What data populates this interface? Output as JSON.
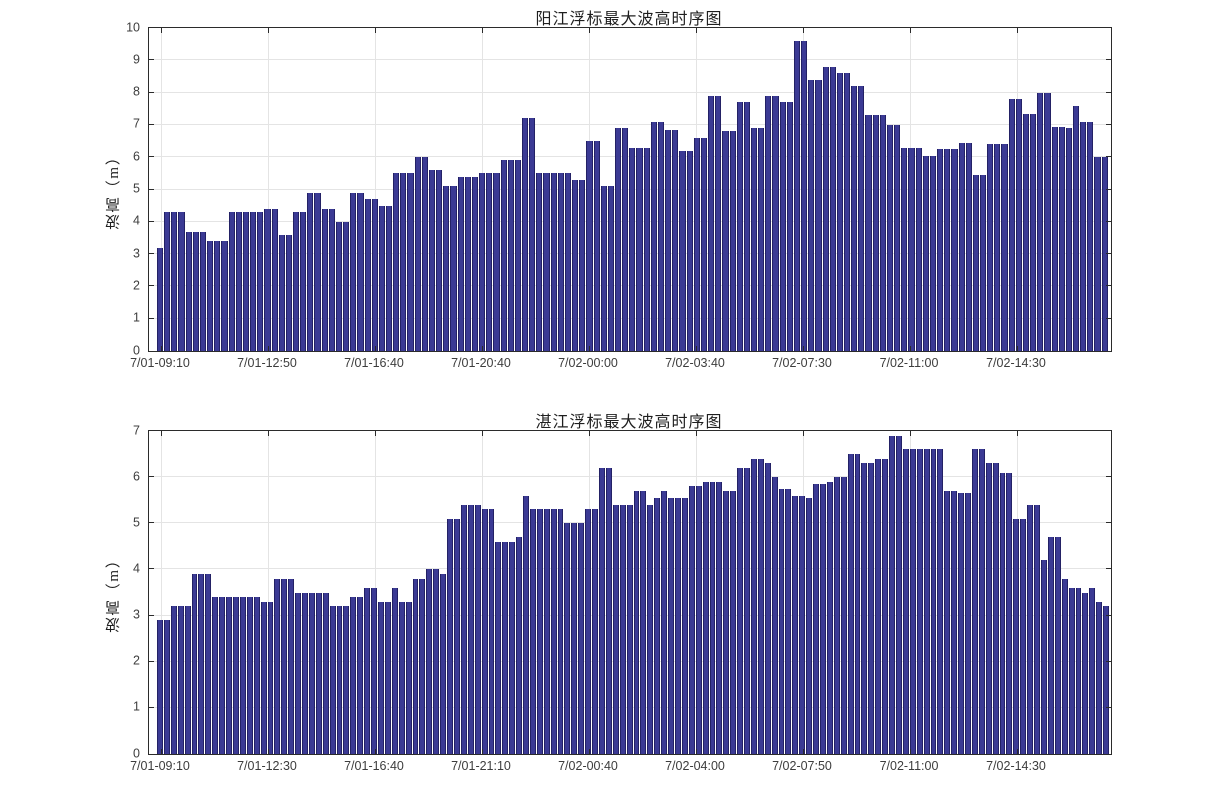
{
  "figure": {
    "background": "#ffffff",
    "grid_color": "#e4e4e4",
    "axis_color": "#2b2b2b",
    "text_color": "#3d3d3d",
    "bar_color": "#3b3a94",
    "bar_edge_color": "#232165"
  },
  "chart_data": [
    {
      "type": "bar",
      "title": "阳江浮标最大波高时序图",
      "xlabel": "",
      "ylabel": "波高（m）",
      "ylim": [
        0,
        10
      ],
      "ytick_step": 1,
      "grid": true,
      "legend": null,
      "xticklabels": [
        "7/01-09:10",
        "7/01-12:50",
        "7/01-16:40",
        "7/01-20:40",
        "7/02-00:00",
        "7/02-03:40",
        "7/02-07:30",
        "7/02-11:00",
        "7/02-14:30"
      ],
      "values": [
        3.2,
        4.3,
        4.3,
        4.3,
        3.7,
        3.7,
        3.7,
        3.4,
        3.4,
        3.4,
        4.3,
        4.3,
        4.3,
        4.3,
        4.3,
        4.4,
        4.4,
        3.6,
        3.6,
        4.3,
        4.3,
        4.9,
        4.9,
        4.4,
        4.4,
        4.0,
        4.0,
        4.9,
        4.9,
        4.7,
        4.7,
        4.5,
        4.5,
        5.5,
        5.5,
        5.5,
        6.0,
        6.0,
        5.6,
        5.6,
        5.1,
        5.1,
        5.4,
        5.4,
        5.4,
        5.5,
        5.5,
        5.5,
        5.9,
        5.9,
        5.9,
        7.2,
        7.2,
        5.5,
        5.5,
        5.5,
        5.5,
        5.5,
        5.3,
        5.3,
        6.5,
        6.5,
        5.1,
        5.1,
        6.9,
        6.9,
        6.3,
        6.3,
        6.3,
        7.1,
        7.1,
        6.85,
        6.85,
        6.2,
        6.2,
        6.6,
        6.6,
        7.9,
        7.9,
        6.8,
        6.8,
        7.7,
        7.7,
        6.9,
        6.9,
        7.9,
        7.9,
        7.7,
        7.7,
        9.6,
        9.6,
        8.4,
        8.4,
        8.8,
        8.8,
        8.6,
        8.6,
        8.2,
        8.2,
        7.3,
        7.3,
        7.3,
        7.0,
        7.0,
        6.3,
        6.3,
        6.3,
        6.05,
        6.05,
        6.25,
        6.25,
        6.25,
        6.45,
        6.45,
        5.45,
        5.45,
        6.4,
        6.4,
        6.4,
        7.8,
        7.8,
        7.35,
        7.35,
        8.0,
        8.0,
        6.95,
        6.95,
        6.9,
        7.6,
        7.1,
        7.1,
        6.0,
        6.0
      ]
    },
    {
      "type": "bar",
      "title": "湛江浮标最大波高时序图",
      "xlabel": "",
      "ylabel": "波高（m）",
      "ylim": [
        0,
        7
      ],
      "ytick_step": 1,
      "grid": true,
      "legend": null,
      "xticklabels": [
        "7/01-09:10",
        "7/01-12:30",
        "7/01-16:40",
        "7/01-21:10",
        "7/02-00:40",
        "7/02-04:00",
        "7/02-07:50",
        "7/02-11:00",
        "7/02-14:30"
      ],
      "values": [
        2.9,
        2.9,
        3.2,
        3.2,
        3.2,
        3.9,
        3.9,
        3.9,
        3.4,
        3.4,
        3.4,
        3.4,
        3.4,
        3.4,
        3.4,
        3.3,
        3.3,
        3.8,
        3.8,
        3.8,
        3.5,
        3.5,
        3.5,
        3.5,
        3.5,
        3.2,
        3.2,
        3.2,
        3.4,
        3.4,
        3.6,
        3.6,
        3.3,
        3.3,
        3.6,
        3.3,
        3.3,
        3.8,
        3.8,
        4.0,
        4.0,
        3.9,
        5.1,
        5.1,
        5.4,
        5.4,
        5.4,
        5.3,
        5.3,
        4.6,
        4.6,
        4.6,
        4.7,
        5.6,
        5.3,
        5.3,
        5.3,
        5.3,
        5.3,
        5.0,
        5.0,
        5.0,
        5.3,
        5.3,
        6.2,
        6.2,
        5.4,
        5.4,
        5.4,
        5.7,
        5.7,
        5.4,
        5.55,
        5.7,
        5.55,
        5.55,
        5.55,
        5.8,
        5.8,
        5.9,
        5.9,
        5.9,
        5.7,
        5.7,
        6.2,
        6.2,
        6.4,
        6.4,
        6.3,
        6.0,
        5.75,
        5.75,
        5.6,
        5.6,
        5.55,
        5.85,
        5.85,
        5.9,
        6.0,
        6.0,
        6.5,
        6.5,
        6.3,
        6.3,
        6.4,
        6.4,
        6.9,
        6.9,
        6.6,
        6.6,
        6.6,
        6.6,
        6.6,
        6.6,
        5.7,
        5.7,
        5.65,
        5.65,
        6.6,
        6.6,
        6.3,
        6.3,
        6.1,
        6.1,
        5.1,
        5.1,
        5.4,
        5.4,
        4.2,
        4.7,
        4.7,
        3.8,
        3.6,
        3.6,
        3.5,
        3.6,
        3.3,
        3.2
      ]
    }
  ]
}
